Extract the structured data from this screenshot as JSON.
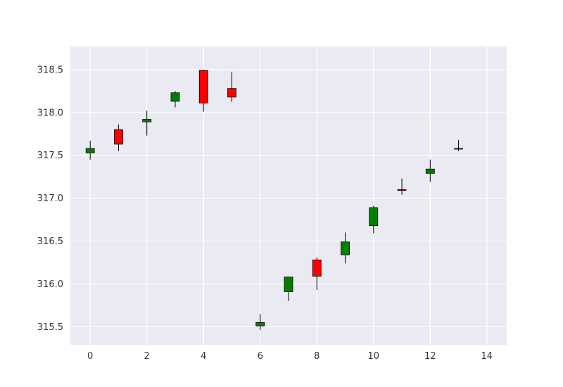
{
  "chart_data": {
    "type": "candlestick",
    "title": "",
    "xlabel": "",
    "ylabel": "",
    "xlim": [
      -0.7,
      14.7
    ],
    "ylim": [
      315.29,
      318.77
    ],
    "grid": true,
    "xticks": [
      0,
      2,
      4,
      6,
      8,
      10,
      12,
      14
    ],
    "xtick_labels": [
      "0",
      "2",
      "4",
      "6",
      "8",
      "10",
      "12",
      "14"
    ],
    "yticks": [
      315.5,
      316.0,
      316.5,
      317.0,
      317.5,
      318.0,
      318.5
    ],
    "ytick_labels": [
      "315.5",
      "316.0",
      "316.5",
      "317.0",
      "317.5",
      "318.0",
      "318.5"
    ],
    "colors": {
      "up": "#008000",
      "down": "#ff0000",
      "edge": "#000000",
      "plot_bg": "#eaeaf2",
      "grid": "#ffffff"
    },
    "candles": [
      {
        "x": 0,
        "open": 317.53,
        "close": 317.58,
        "high": 317.67,
        "low": 317.45
      },
      {
        "x": 1,
        "open": 317.8,
        "close": 317.63,
        "high": 317.86,
        "low": 317.55
      },
      {
        "x": 2,
        "open": 317.89,
        "close": 317.92,
        "high": 318.02,
        "low": 317.73
      },
      {
        "x": 3,
        "open": 318.13,
        "close": 318.23,
        "high": 318.25,
        "low": 318.06
      },
      {
        "x": 4,
        "open": 318.49,
        "close": 318.11,
        "high": 318.5,
        "low": 318.01
      },
      {
        "x": 5,
        "open": 318.28,
        "close": 318.18,
        "high": 318.47,
        "low": 318.12
      },
      {
        "x": 6,
        "open": 315.51,
        "close": 315.55,
        "high": 315.65,
        "low": 315.46
      },
      {
        "x": 7,
        "open": 315.91,
        "close": 316.08,
        "high": 316.08,
        "low": 315.8
      },
      {
        "x": 8,
        "open": 316.28,
        "close": 316.09,
        "high": 316.31,
        "low": 315.93
      },
      {
        "x": 9,
        "open": 316.34,
        "close": 316.49,
        "high": 316.6,
        "low": 316.24
      },
      {
        "x": 10,
        "open": 316.68,
        "close": 316.89,
        "high": 316.91,
        "low": 316.59
      },
      {
        "x": 11,
        "open": 317.1,
        "close": 317.09,
        "high": 317.23,
        "low": 317.04
      },
      {
        "x": 12,
        "open": 317.29,
        "close": 317.34,
        "high": 317.45,
        "low": 317.19
      },
      {
        "x": 13,
        "open": 317.58,
        "close": 317.58,
        "high": 317.68,
        "low": 317.55
      }
    ]
  }
}
